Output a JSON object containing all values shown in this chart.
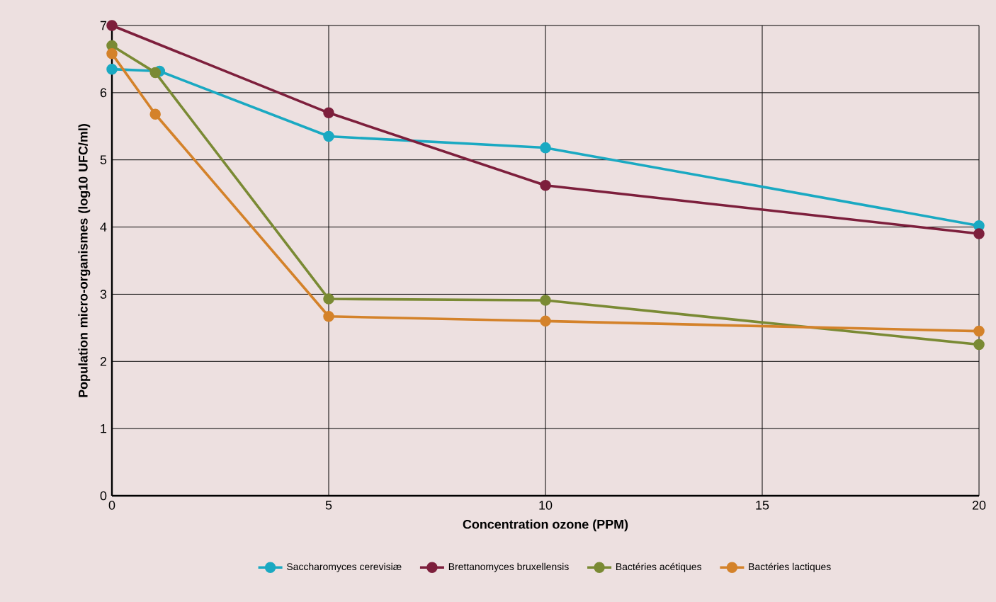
{
  "chart_data": {
    "type": "line",
    "xlabel": "Concentration ozone (PPM)",
    "ylabel": "Population micro-organismes (log10 UFC/ml)",
    "xlim": [
      0,
      20
    ],
    "ylim": [
      0,
      7
    ],
    "xticks": [
      0,
      5,
      10,
      15,
      20
    ],
    "yticks": [
      0,
      1,
      2,
      3,
      4,
      5,
      6,
      7
    ],
    "grid": true,
    "legend": "bottom",
    "marker": "circle",
    "series": [
      {
        "name": "Saccharomyces cerevisiæ",
        "color": "#1aa9c2",
        "x": [
          0,
          1.1,
          5,
          10,
          20
        ],
        "values": [
          6.35,
          6.32,
          5.35,
          5.18,
          4.02
        ]
      },
      {
        "name": "Brettanomyces bruxellensis",
        "color": "#7d1f3c",
        "x": [
          0,
          5,
          10,
          20
        ],
        "values": [
          7,
          5.7,
          4.62,
          3.9
        ]
      },
      {
        "name": "Bactéries acétiques",
        "color": "#7a8a34",
        "x": [
          0,
          1,
          5,
          10,
          20
        ],
        "values": [
          6.7,
          6.3,
          2.93,
          2.91,
          2.25
        ]
      },
      {
        "name": "Bactéries lactiques",
        "color": "#d4822a",
        "x": [
          0,
          1,
          5,
          10,
          20
        ],
        "values": [
          6.58,
          5.68,
          2.67,
          2.6,
          2.45
        ]
      }
    ]
  }
}
